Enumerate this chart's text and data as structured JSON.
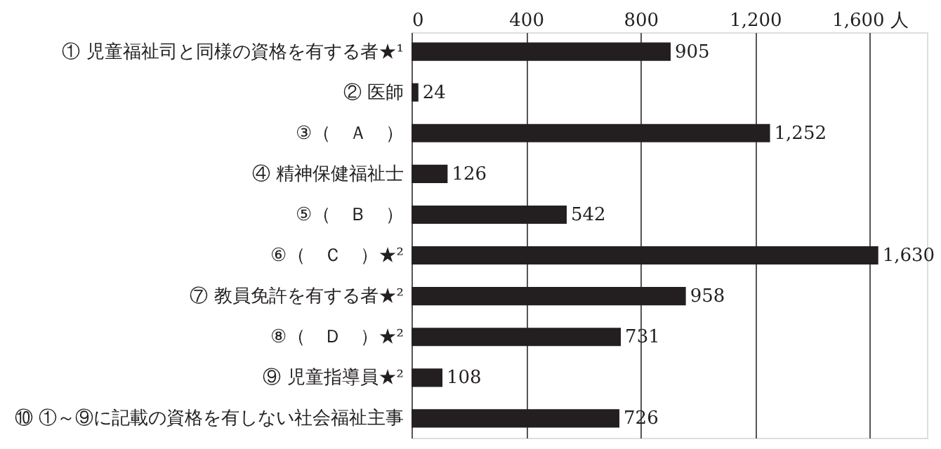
{
  "chart_data": {
    "type": "bar",
    "orientation": "horizontal",
    "categories": [
      "① 児童福祉司と同様の資格を有する者★¹",
      "② 医師",
      "③（　Ａ　）",
      "④ 精神保健福祉士",
      "⑤（　Ｂ　）",
      "⑥（　Ｃ　）★²",
      "⑦ 教員免許を有する者★²",
      "⑧（　Ｄ　）★²",
      "⑨ 児童指導員★²",
      "⑩ ①～⑨に記載の資格を有しない社会福祉主事"
    ],
    "values": [
      905,
      24,
      1252,
      126,
      542,
      1630,
      958,
      731,
      108,
      726
    ],
    "value_labels": [
      "905",
      "24",
      "1,252",
      "126",
      "542",
      "1,630",
      "958",
      "731",
      "108",
      "726"
    ],
    "color": "#231f20",
    "xlim": [
      0,
      1800
    ],
    "xticks": [
      0,
      400,
      800,
      {
        "value": 1200,
        "label": "1,200"
      },
      {
        "value": 1600,
        "label": "1,600 人"
      }
    ],
    "grid": "x"
  }
}
